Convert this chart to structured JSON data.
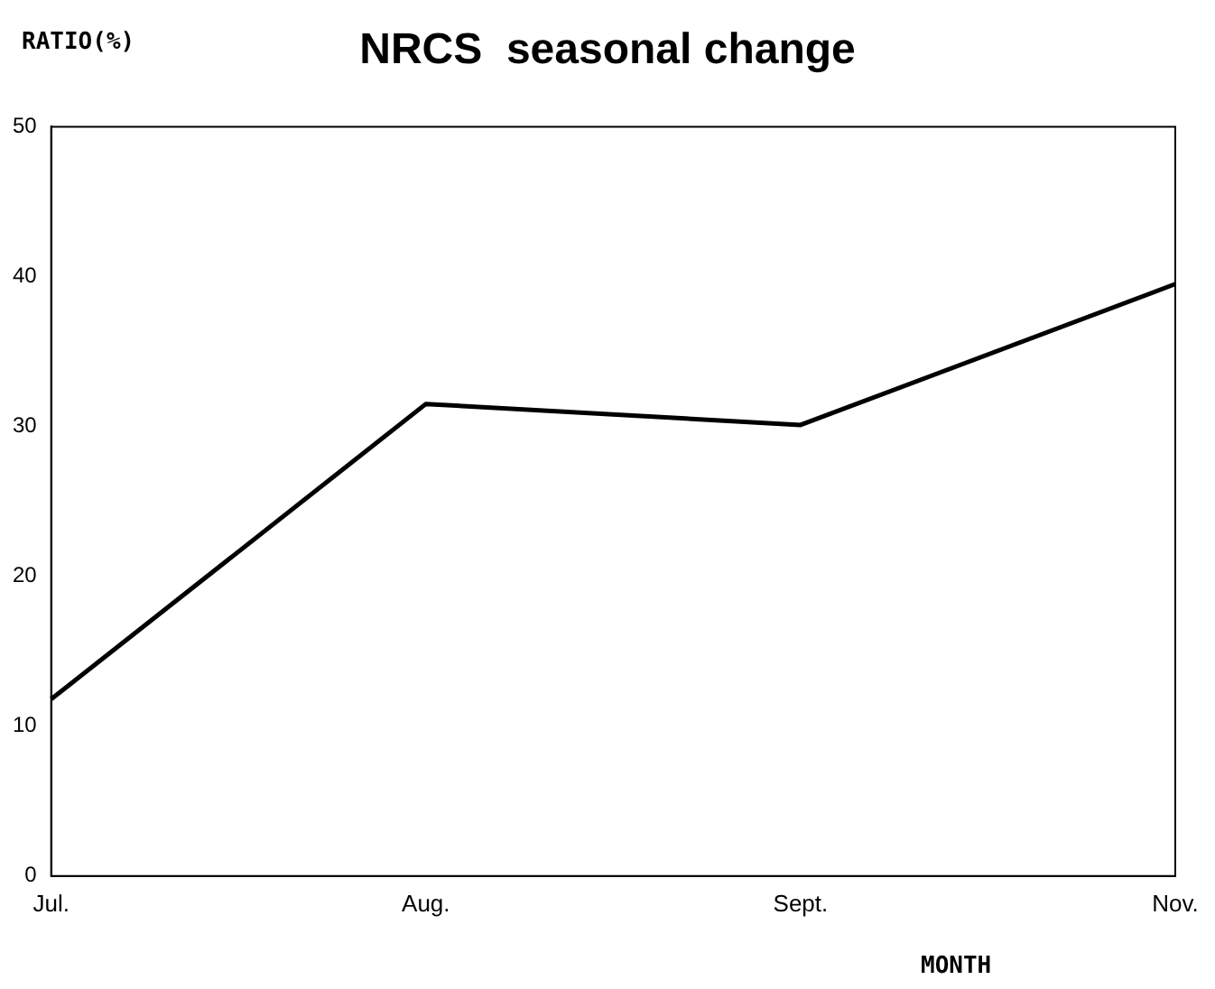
{
  "chart_data": {
    "type": "line",
    "title": "NRCS  seasonal change",
    "ylabel": "RATIO(%)",
    "xlabel": "MONTH",
    "categories": [
      "Jul.",
      "Aug.",
      "Sept.",
      "Nov."
    ],
    "series": [
      {
        "color": "#000000",
        "values": [
          11.8,
          31.5,
          30.1,
          39.5
        ]
      }
    ],
    "ylim": [
      0,
      50
    ],
    "yticks": [
      0,
      10,
      20,
      30,
      40,
      50
    ],
    "grid": false,
    "legend": false,
    "marker": "none",
    "line_style": "solid"
  }
}
